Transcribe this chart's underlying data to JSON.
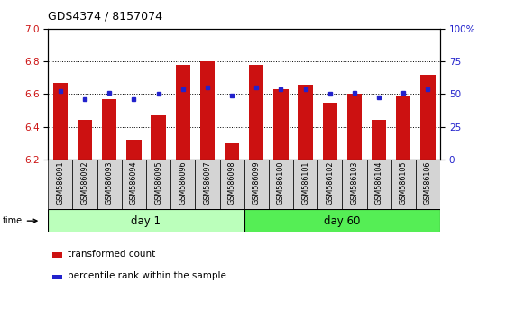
{
  "title": "GDS4374 / 8157074",
  "categories": [
    "GSM586091",
    "GSM586092",
    "GSM586093",
    "GSM586094",
    "GSM586095",
    "GSM586096",
    "GSM586097",
    "GSM586098",
    "GSM586099",
    "GSM586100",
    "GSM586101",
    "GSM586102",
    "GSM586103",
    "GSM586104",
    "GSM586105",
    "GSM586106"
  ],
  "bar_values": [
    6.67,
    6.44,
    6.57,
    6.32,
    6.47,
    6.78,
    6.8,
    6.3,
    6.78,
    6.63,
    6.66,
    6.55,
    6.6,
    6.44,
    6.59,
    6.72
  ],
  "dot_values": [
    6.62,
    6.57,
    6.61,
    6.57,
    6.6,
    6.63,
    6.64,
    6.59,
    6.64,
    6.63,
    6.63,
    6.6,
    6.61,
    6.58,
    6.61,
    6.63
  ],
  "bar_color": "#cc1111",
  "dot_color": "#2222cc",
  "ylim_left": [
    6.2,
    7.0
  ],
  "ylim_right": [
    0,
    100
  ],
  "yticks_left": [
    6.2,
    6.4,
    6.6,
    6.8,
    7.0
  ],
  "yticks_right": [
    0,
    25,
    50,
    75,
    100
  ],
  "ytick_labels_right": [
    "0",
    "25",
    "50",
    "75",
    "100%"
  ],
  "group1_label": "day 1",
  "group2_label": "day 60",
  "group1_color": "#bbffbb",
  "group2_color": "#55ee55",
  "time_label": "time",
  "legend_bar_label": "transformed count",
  "legend_dot_label": "percentile rank within the sample",
  "bar_bottom": 6.2,
  "bg_color": "#ffffff",
  "label_bg_color": "#d4d4d4",
  "n_group1": 8,
  "n_group2": 8
}
